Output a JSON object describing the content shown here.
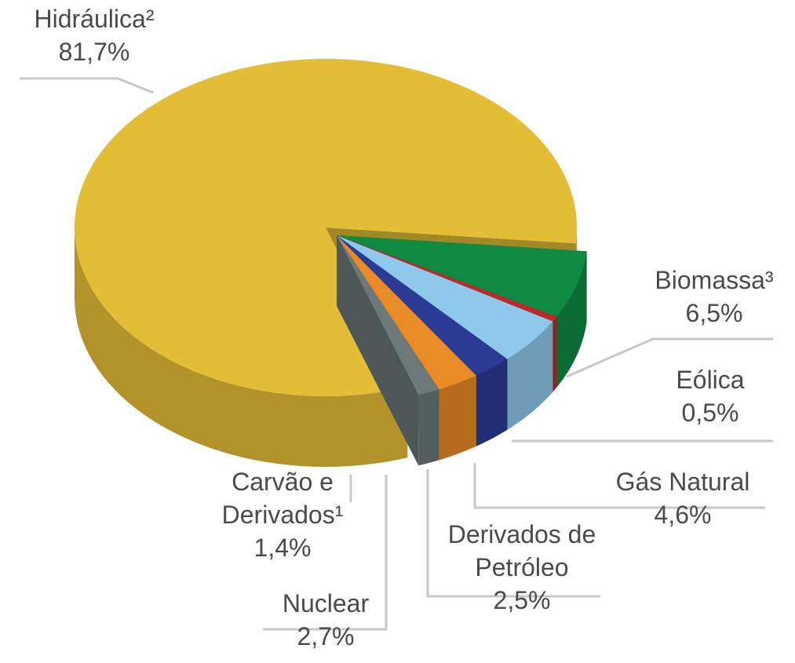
{
  "chart_data": {
    "type": "pie",
    "categories": [
      "Hidráulica²",
      "Biomassa³",
      "Eólica",
      "Gás Natural",
      "Derivados de\nPetróleo",
      "Nuclear",
      "Carvão e\nDerivados¹"
    ],
    "values": [
      81.7,
      6.5,
      0.5,
      4.6,
      2.5,
      2.7,
      1.4
    ],
    "value_labels": [
      "81,7%",
      "6,5%",
      "0,5%",
      "4,6%",
      "2,5%",
      "2,7%",
      "1,4%"
    ],
    "colors": [
      "#e3bd35",
      "#0e8a42",
      "#c0282a",
      "#8ec8ea",
      "#2b3a93",
      "#e88a25",
      "#6b7a78"
    ]
  }
}
